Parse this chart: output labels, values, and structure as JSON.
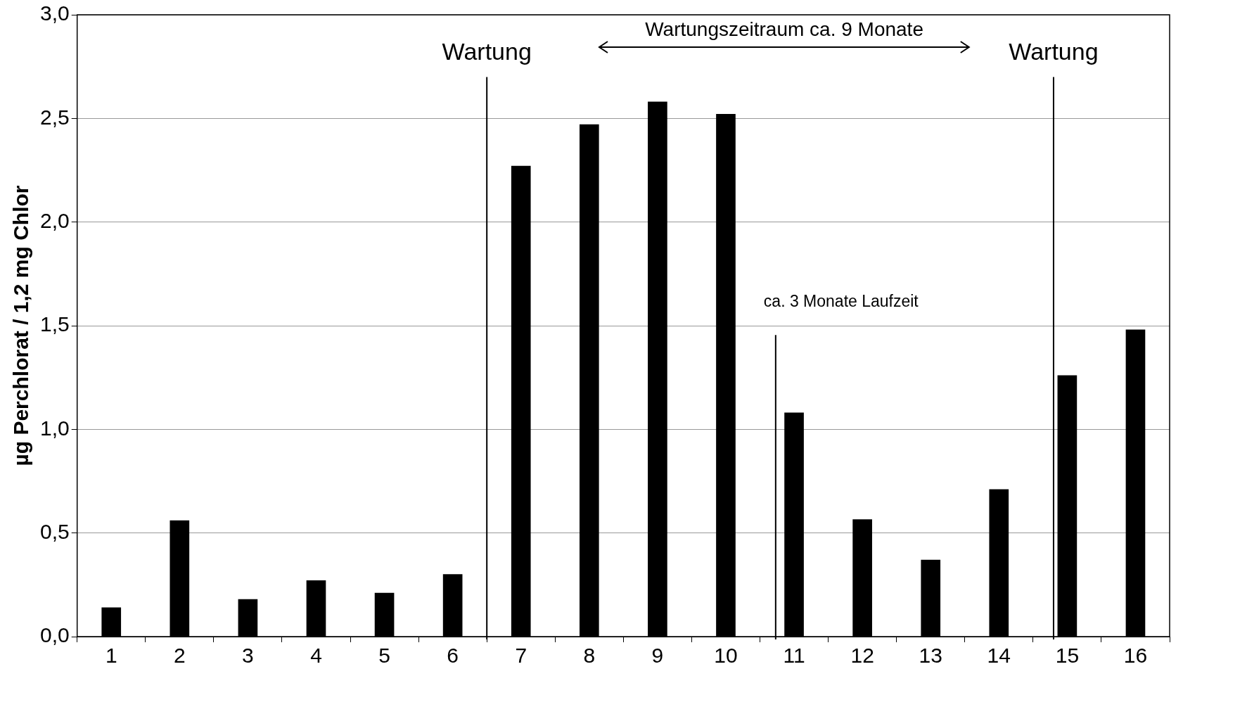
{
  "chart_data": {
    "type": "bar",
    "ylabel": "µg Perchlorat / 1,2 mg Chlor",
    "x": [
      1,
      2,
      3,
      4,
      5,
      6,
      7,
      8,
      9,
      10,
      11,
      12,
      13,
      14,
      15,
      16
    ],
    "values": [
      0.14,
      0.56,
      0.18,
      0.27,
      0.21,
      0.3,
      2.27,
      2.47,
      2.58,
      2.52,
      1.08,
      0.565,
      0.37,
      0.71,
      1.26,
      1.48
    ],
    "color": "#000000",
    "xlim": [
      0.5,
      16.5
    ],
    "xticks": [
      1,
      2,
      3,
      4,
      5,
      6,
      7,
      8,
      9,
      10,
      11,
      12,
      13,
      14,
      15,
      16
    ],
    "ylim": [
      0,
      3
    ],
    "yticks": [
      {
        "value": 0,
        "label": "0,0"
      },
      {
        "value": 0.5,
        "label": "0,5"
      },
      {
        "value": 1,
        "label": "1,0"
      },
      {
        "value": 1.5,
        "label": "1,5"
      },
      {
        "value": 2,
        "label": "2,0"
      },
      {
        "value": 2.5,
        "label": "2,5"
      },
      {
        "value": 3,
        "label": "3,0"
      }
    ],
    "grid": "y",
    "legend": false,
    "ref_lines": [
      {
        "axis": "x",
        "value": 6.5,
        "color": "#000000",
        "label": "Wartung"
      },
      {
        "axis": "x",
        "value": 10.73,
        "color": "#000000",
        "label": "ca. 3 Monate Laufzeit"
      },
      {
        "axis": "x",
        "value": 14.8,
        "color": "#000000",
        "label": "Wartung"
      }
    ],
    "annotations": [
      "Wartungszeitraum ca. 9 Monate"
    ]
  }
}
